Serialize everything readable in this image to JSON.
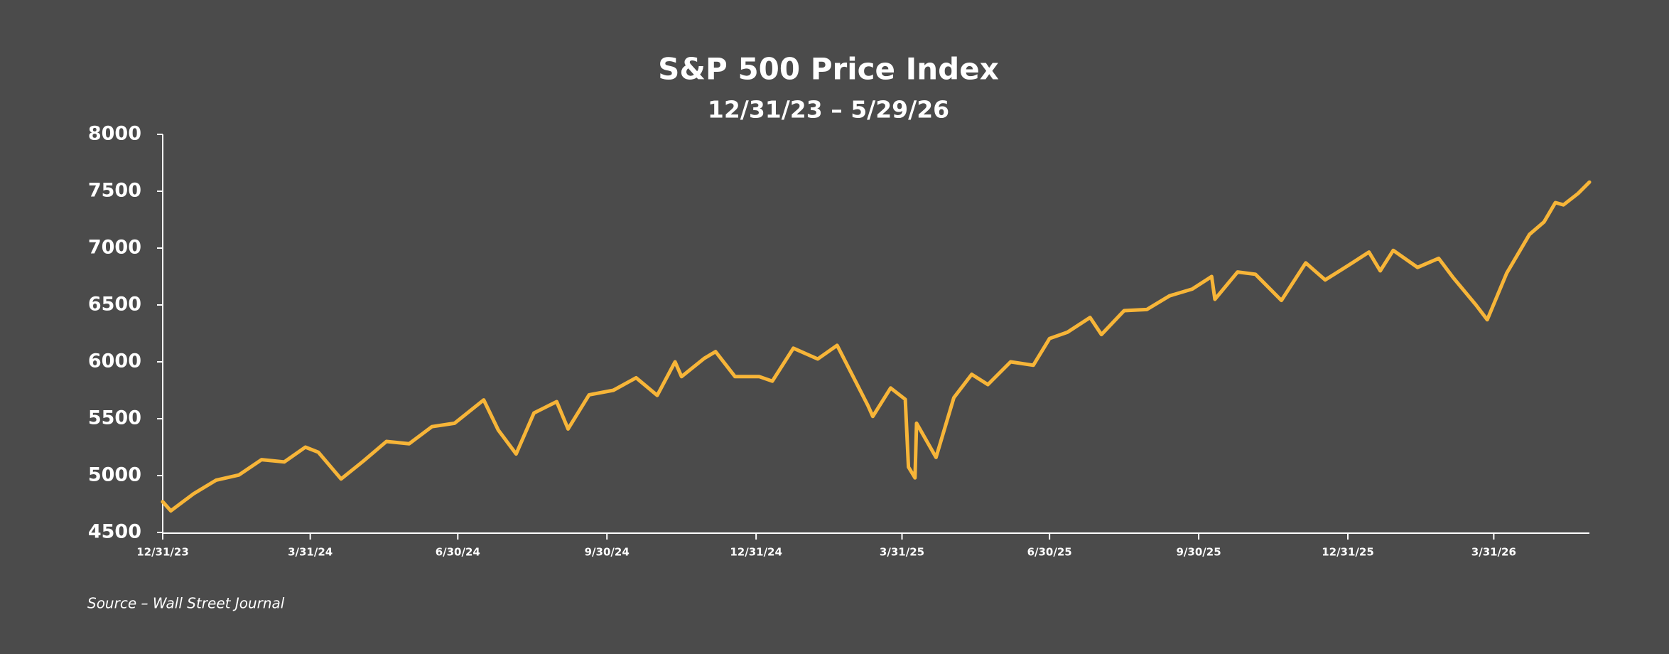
{
  "chart_data": {
    "type": "line",
    "title": "S&P 500 Price Index",
    "subtitle": "12/31/23 – 5/29/26",
    "source": "Source – Wall Street Journal",
    "color": "#f7b538",
    "x": [
      "12/31/23",
      "1/5/24",
      "1/19/24",
      "2/2/24",
      "2/16/24",
      "3/1/24",
      "3/15/24",
      "3/28/24",
      "4/5/24",
      "4/19/24",
      "5/3/24",
      "5/17/24",
      "5/31/24",
      "6/14/24",
      "6/28/24",
      "7/16/24",
      "7/25/24",
      "8/5/24",
      "8/16/24",
      "8/30/24",
      "9/6/24",
      "9/19/24",
      "10/4/24",
      "10/18/24",
      "10/31/24",
      "11/11/24",
      "11/15/24",
      "11/29/24",
      "12/6/24",
      "12/18/24",
      "1/2/25",
      "1/10/25",
      "1/23/25",
      "2/7/25",
      "2/19/25",
      "3/10/25",
      "3/13/25",
      "3/24/25",
      "4/2/25",
      "4/4/25",
      "4/8/25",
      "4/9/25",
      "4/21/25",
      "5/2/25",
      "5/13/25",
      "5/23/25",
      "6/6/25",
      "6/20/25",
      "6/30/25",
      "7/11/25",
      "7/25/25",
      "8/1/25",
      "8/15/25",
      "8/29/25",
      "9/12/25",
      "9/26/25",
      "10/8/25",
      "10/10/25",
      "10/24/25",
      "11/4/25",
      "11/20/25",
      "12/5/25",
      "12/17/25",
      "12/31/25",
      "1/13/26",
      "1/20/26",
      "1/28/26",
      "2/12/26",
      "2/25/26",
      "3/6/26",
      "3/20/26",
      "3/27/26",
      "4/8/26",
      "4/22/26",
      "5/1/26",
      "5/8/26",
      "5/13/26",
      "5/22/26",
      "5/29/26"
    ],
    "values": [
      4770,
      4690,
      4840,
      4960,
      5005,
      5140,
      5120,
      5250,
      5205,
      4970,
      5130,
      5300,
      5280,
      5430,
      5460,
      5665,
      5400,
      5190,
      5550,
      5650,
      5410,
      5710,
      5750,
      5860,
      5705,
      6000,
      5870,
      6030,
      6090,
      5870,
      5870,
      5830,
      6120,
      6025,
      6145,
      5615,
      5520,
      5770,
      5670,
      5075,
      4980,
      5460,
      5160,
      5685,
      5890,
      5800,
      6000,
      5970,
      6205,
      6260,
      6390,
      6240,
      6450,
      6460,
      6580,
      6640,
      6750,
      6550,
      6790,
      6770,
      6540,
      6870,
      6720,
      6845,
      6965,
      6800,
      6980,
      6830,
      6910,
      6740,
      6500,
      6370,
      6780,
      7120,
      7230,
      7400,
      7380,
      7480,
      7580
    ],
    "xlim": [
      "12/31/23",
      "5/29/26"
    ],
    "xticks": [
      "12/31/23",
      "3/31/24",
      "6/30/24",
      "9/30/24",
      "12/31/24",
      "3/31/25",
      "6/30/25",
      "9/30/25",
      "12/31/25",
      "3/31/26"
    ],
    "ylim": [
      4500,
      8000
    ],
    "yticks": [
      4500,
      5000,
      5500,
      6000,
      6500,
      7000,
      7500,
      8000
    ]
  }
}
